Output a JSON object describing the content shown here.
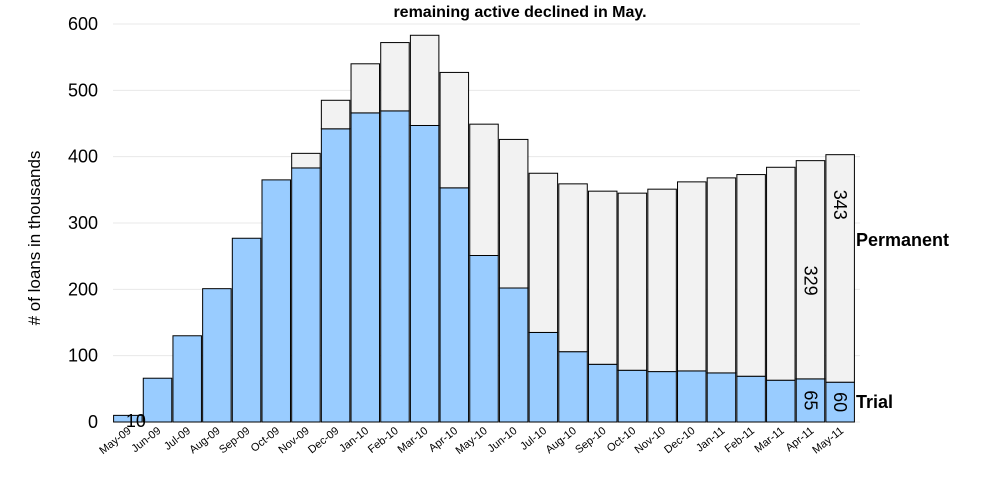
{
  "chart_data": {
    "type": "bar",
    "stacked": true,
    "title": "remaining active declined in May.",
    "ylabel": "# of loans in thousands",
    "xlabel": "",
    "ylim": [
      0,
      600
    ],
    "yticks": [
      0,
      100,
      200,
      300,
      400,
      500,
      600
    ],
    "grid": true,
    "legend_placement": "right",
    "categories": [
      "May-09",
      "Jun-09",
      "Jul-09",
      "Aug-09",
      "Sep-09",
      "Oct-09",
      "Nov-09",
      "Dec-09",
      "Jan-10",
      "Feb-10",
      "Mar-10",
      "Apr-10",
      "May-10",
      "Jun-10",
      "Jul-10",
      "Aug-10",
      "Sep-10",
      "Oct-10",
      "Nov-10",
      "Dec-10",
      "Jan-11",
      "Feb-11",
      "Mar-11",
      "Apr-11",
      "May-11"
    ],
    "series": [
      {
        "name": "Trial",
        "color": "#99ccff",
        "values": [
          10,
          66,
          130,
          201,
          277,
          365,
          383,
          442,
          466,
          469,
          447,
          353,
          251,
          202,
          135,
          106,
          87,
          78,
          76,
          77,
          74,
          69,
          63,
          65,
          60
        ]
      },
      {
        "name": "Permanent",
        "color": "#f2f2f2",
        "values": [
          0,
          0,
          0,
          0,
          0,
          0,
          22,
          43,
          74,
          103,
          136,
          174,
          198,
          224,
          240,
          253,
          261,
          267,
          275,
          285,
          294,
          304,
          321,
          329,
          343
        ]
      }
    ],
    "data_labels": [
      {
        "category": "May-09",
        "series": "Trial",
        "text": "10"
      },
      {
        "category": "Apr-11",
        "series": "Trial",
        "text": "65"
      },
      {
        "category": "May-11",
        "series": "Trial",
        "text": "60"
      },
      {
        "category": "Apr-11",
        "series": "Permanent",
        "text": "329"
      },
      {
        "category": "May-11",
        "series": "Permanent",
        "text": "343"
      }
    ]
  }
}
